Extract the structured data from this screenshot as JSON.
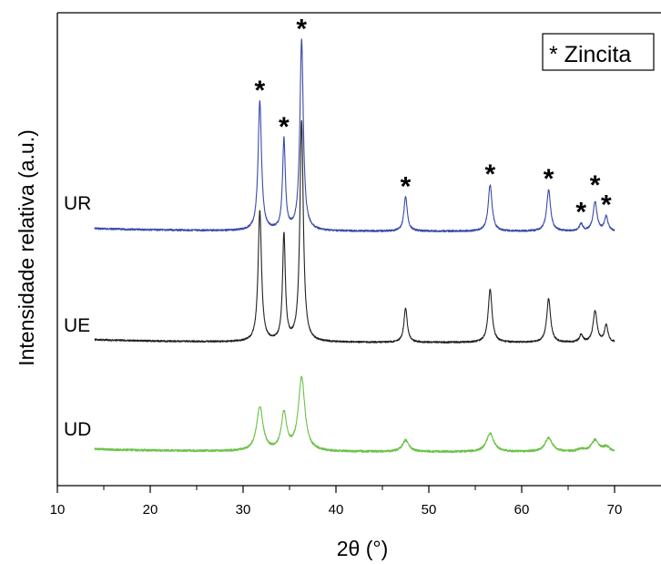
{
  "chart_data": {
    "type": "line",
    "xlabel": "2θ (°)",
    "ylabel": "Intensidade relativa (a.u.)",
    "xlim": [
      10,
      75
    ],
    "x_ticks": [
      10,
      20,
      30,
      40,
      50,
      60,
      70
    ],
    "grid": false,
    "legend": {
      "text": "* Zincita",
      "placement": "top-right"
    },
    "peak_marker": "*",
    "peaks_2theta": [
      31.8,
      34.4,
      36.3,
      47.5,
      56.6,
      62.9,
      66.4,
      67.9,
      69.1
    ],
    "series": [
      {
        "name": "UR",
        "color": "#3b4aa8",
        "baseline": 0.0,
        "x_range": [
          14,
          70
        ],
        "peaks": [
          [
            31.8,
            0.53
          ],
          [
            34.4,
            0.37
          ],
          [
            36.3,
            0.78
          ],
          [
            47.5,
            0.14
          ],
          [
            56.6,
            0.19
          ],
          [
            62.9,
            0.17
          ],
          [
            66.4,
            0.03
          ],
          [
            67.9,
            0.12
          ],
          [
            69.1,
            0.06
          ]
        ]
      },
      {
        "name": "UE",
        "color": "#222222",
        "baseline": 0.0,
        "x_range": [
          14,
          70
        ],
        "peaks": [
          [
            31.8,
            0.54
          ],
          [
            34.4,
            0.44
          ],
          [
            36.3,
            0.91
          ],
          [
            47.5,
            0.14
          ],
          [
            56.6,
            0.22
          ],
          [
            62.9,
            0.18
          ],
          [
            66.4,
            0.03
          ],
          [
            67.9,
            0.13
          ],
          [
            69.1,
            0.07
          ]
        ]
      },
      {
        "name": "UD",
        "color": "#6cc24a",
        "baseline": 0.0,
        "x_range": [
          14,
          70
        ],
        "peaks": [
          [
            31.8,
            0.19
          ],
          [
            34.4,
            0.16
          ],
          [
            36.3,
            0.32
          ],
          [
            47.5,
            0.05
          ],
          [
            56.6,
            0.08
          ],
          [
            62.9,
            0.06
          ],
          [
            66.4,
            0.01
          ],
          [
            67.9,
            0.05
          ],
          [
            69.1,
            0.02
          ]
        ]
      }
    ]
  }
}
